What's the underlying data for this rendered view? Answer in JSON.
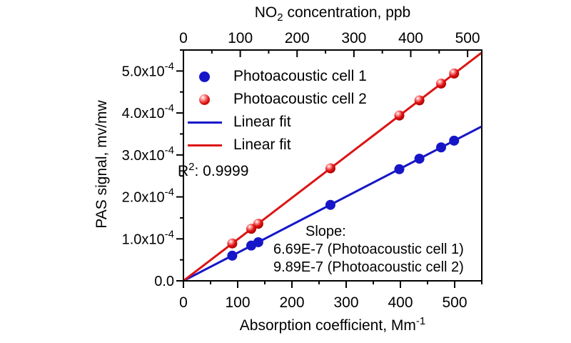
{
  "chart_data": {
    "type": "scatter",
    "title": "",
    "grid": false,
    "legend_position": "upper-left",
    "x": [
      90,
      125,
      138,
      271,
      398,
      435,
      475,
      499
    ],
    "series": [
      {
        "name": "Photoacoustic cell 1",
        "color": "#1616c8",
        "marker": "circle",
        "marker_style": "flat",
        "y": [
          6e-05,
          8.4e-05,
          9.2e-05,
          0.000181,
          0.000266,
          0.000291,
          0.000318,
          0.000334
        ],
        "fit": {
          "label": "Linear fit",
          "slope": 6.69e-07,
          "intercept": 0
        }
      },
      {
        "name": "Photoacoustic cell 2",
        "color": "#dc1414",
        "marker": "circle",
        "marker_style": "glossy",
        "y": [
          8.9e-05,
          0.000124,
          0.000136,
          0.000268,
          0.000394,
          0.00043,
          0.00047,
          0.000494
        ],
        "fit": {
          "label": "Linear fit",
          "slope": 9.89e-07,
          "intercept": 0
        }
      }
    ],
    "x_axis": {
      "label_pre": "Absorption coefficient, Mm",
      "label_sup": "-1",
      "min": 0,
      "max": 550,
      "ticks": [
        {
          "v": 0,
          "label": "0"
        },
        {
          "v": 100,
          "label": "100"
        },
        {
          "v": 200,
          "label": "200"
        },
        {
          "v": 300,
          "label": "300"
        },
        {
          "v": 400,
          "label": "400"
        },
        {
          "v": 500,
          "label": "500"
        }
      ],
      "minor_ticks": [
        50,
        150,
        250,
        350,
        450,
        550
      ]
    },
    "top_axis": {
      "label_pre": "NO",
      "label_sub": "2",
      "label_post": " concentration, ppb",
      "min": 0,
      "max": 525,
      "ticks": [
        {
          "v": 0,
          "label": "0"
        },
        {
          "v": 100,
          "label": "100"
        },
        {
          "v": 200,
          "label": "200"
        },
        {
          "v": 300,
          "label": "300"
        },
        {
          "v": 400,
          "label": "400"
        },
        {
          "v": 500,
          "label": "500"
        }
      ],
      "minor_ticks": [
        50,
        150,
        250,
        350,
        450
      ]
    },
    "y_axis": {
      "label": "PAS signal, mv/mw",
      "min": 0,
      "max": 0.00055,
      "ticks": [
        {
          "v": 0,
          "base": "0.0",
          "sup": ""
        },
        {
          "v": 0.0001,
          "base": "1.0x10",
          "sup": "-4"
        },
        {
          "v": 0.0002,
          "base": "2.0x10",
          "sup": "-4"
        },
        {
          "v": 0.0003,
          "base": "3.0x10",
          "sup": "-4"
        },
        {
          "v": 0.0004,
          "base": "4.0x10",
          "sup": "-4"
        },
        {
          "v": 0.0005,
          "base": "5.0x10",
          "sup": "-4"
        }
      ],
      "minor_ticks": [
        5e-05,
        0.00015,
        0.00025,
        0.00035,
        0.00045,
        0.00055
      ]
    },
    "legend": {
      "entries": [
        {
          "type": "marker",
          "series": 0,
          "label": "Photoacoustic cell 1"
        },
        {
          "type": "marker",
          "series": 1,
          "label": "Photoacoustic cell 2"
        },
        {
          "type": "line",
          "series": 0,
          "label": "Linear fit"
        },
        {
          "type": "line",
          "series": 1,
          "label": "Linear fit"
        }
      ]
    },
    "annotations": {
      "r2": {
        "pre": "R",
        "sup": "2",
        "post": ": 0.9999"
      },
      "slope": {
        "title": "Slope:",
        "lines": [
          "6.69E-7 (Photoacoustic cell 1)",
          "9.89E-7 (Photoacoustic cell 2)"
        ]
      }
    },
    "colors": {
      "axis": "#000000",
      "text": "#000000",
      "background": "#ffffff"
    }
  }
}
